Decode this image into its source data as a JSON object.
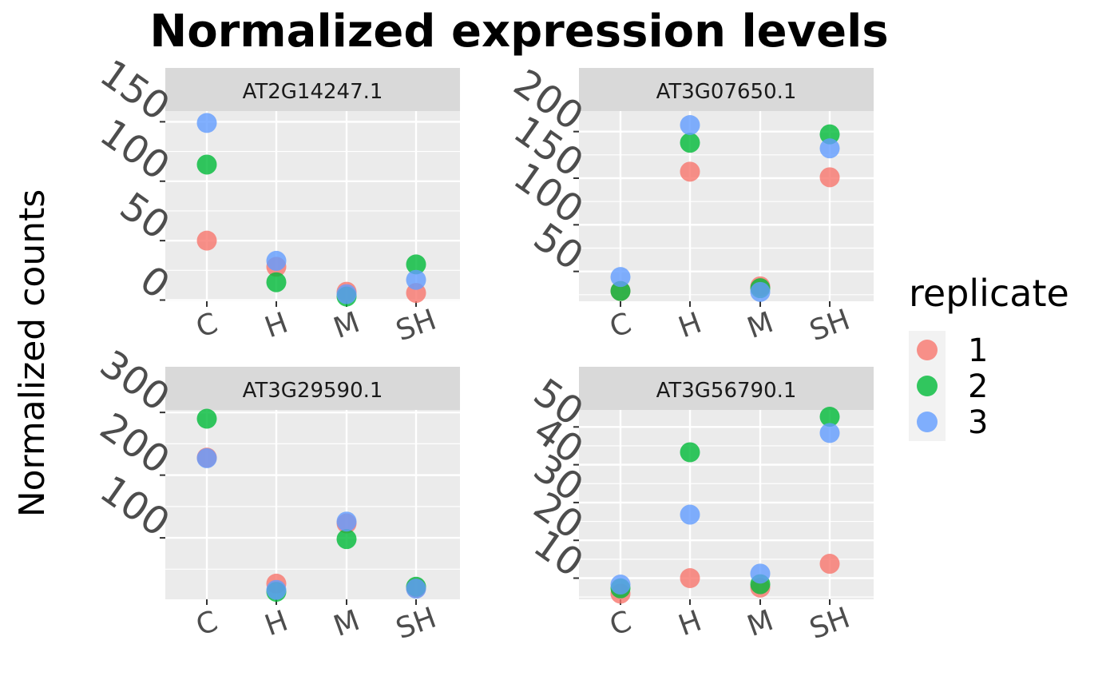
{
  "chart_data": {
    "type": "scatter",
    "title": "Normalized expression levels",
    "ylabel": "Normalized counts",
    "xlabel": "",
    "categories": [
      "C",
      "H",
      "M",
      "SH"
    ],
    "grid": true,
    "legend": {
      "title": "replicate",
      "position": "right",
      "entries": [
        {
          "name": "1",
          "color": "#F8766D"
        },
        {
          "name": "2",
          "color": "#00BA38"
        },
        {
          "name": "3",
          "color": "#619CFF"
        }
      ]
    },
    "panels": [
      {
        "name": "AT2G14247.1",
        "ylim": [
          -1,
          159
        ],
        "yticks": [
          "0",
          "50",
          "100",
          "150"
        ],
        "ytick_values": [
          0,
          50,
          100,
          150
        ],
        "series": [
          {
            "name": "1",
            "values": [
              50,
              28,
              7,
              6
            ]
          },
          {
            "name": "2",
            "values": [
              114,
              15,
              3,
              30
            ]
          },
          {
            "name": "3",
            "values": [
              149,
              33,
              5,
              17
            ]
          }
        ]
      },
      {
        "name": "AT3G07650.1",
        "ylim": [
          18,
          222
        ],
        "yticks": [
          "50",
          "100",
          "150",
          "200"
        ],
        "ytick_values": [
          50,
          100,
          150,
          200
        ],
        "series": [
          {
            "name": "1",
            "values": [
              29,
              157,
              34,
              151
            ]
          },
          {
            "name": "2",
            "values": [
              29,
              188,
              32,
              197
            ]
          },
          {
            "name": "3",
            "values": [
              44,
              207,
              28,
              182
            ]
          }
        ]
      },
      {
        "name": "AT3G29590.1",
        "ylim": [
          2,
          304
        ],
        "yticks": [
          "100",
          "200",
          "300"
        ],
        "ytick_values": [
          100,
          200,
          300
        ],
        "series": [
          {
            "name": "1",
            "values": [
              228,
              27,
              123,
              20
            ]
          },
          {
            "name": "2",
            "values": [
              290,
              14,
              98,
              22
            ]
          },
          {
            "name": "3",
            "values": [
              227,
              17,
              126,
              19
            ]
          }
        ]
      },
      {
        "name": "AT3G56790.1",
        "ylim": [
          4.4,
          54.5
        ],
        "yticks": [
          "10",
          "20",
          "30",
          "40",
          "50"
        ],
        "ytick_values": [
          10,
          20,
          30,
          40,
          50
        ],
        "series": [
          {
            "name": "1",
            "values": [
              5.9,
              10,
              7.5,
              13.8
            ]
          },
          {
            "name": "2",
            "values": [
              7.3,
              43.3,
              8.4,
              52.7
            ]
          },
          {
            "name": "3",
            "values": [
              8.3,
              26.8,
              11.2,
              48.4
            ]
          }
        ]
      }
    ]
  }
}
